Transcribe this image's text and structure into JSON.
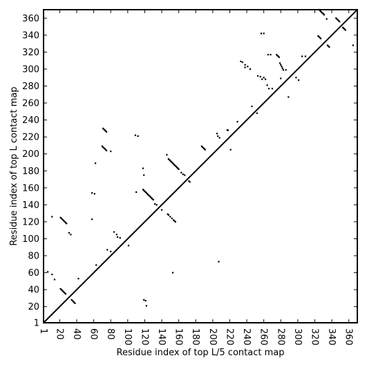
{
  "chart_data": {
    "type": "scatter",
    "title": "",
    "xlabel": "Residue index of top L/5 contact map",
    "ylabel": "Residue index of top L contact map",
    "xlim": [
      1,
      370
    ],
    "ylim": [
      1,
      370
    ],
    "grid": false,
    "x_ticks": [
      1,
      20,
      40,
      60,
      80,
      100,
      120,
      140,
      160,
      180,
      200,
      220,
      240,
      260,
      280,
      300,
      320,
      340,
      360
    ],
    "y_ticks": [
      1,
      20,
      40,
      60,
      80,
      100,
      120,
      140,
      160,
      180,
      200,
      220,
      240,
      260,
      280,
      300,
      320,
      340,
      360
    ],
    "diagonal": {
      "from": [
        1,
        1
      ],
      "to": [
        370,
        370
      ]
    },
    "series": [
      {
        "marker_color": "#000000",
        "points": [
          [
            21,
            125
          ],
          [
            22,
            124
          ],
          [
            23,
            123
          ],
          [
            24,
            122
          ],
          [
            25,
            121
          ],
          [
            26,
            120
          ],
          [
            27,
            119
          ],
          [
            28,
            118
          ],
          [
            21,
            41
          ],
          [
            22,
            40
          ],
          [
            23,
            39
          ],
          [
            24,
            38
          ],
          [
            25,
            37
          ],
          [
            26,
            36
          ],
          [
            27,
            35
          ],
          [
            34,
            28
          ],
          [
            35,
            27
          ],
          [
            36,
            26
          ],
          [
            37,
            25
          ],
          [
            38,
            24
          ],
          [
            31,
            107
          ],
          [
            33,
            105
          ],
          [
            11,
            126
          ],
          [
            11,
            58
          ],
          [
            14,
            52
          ],
          [
            6,
            61
          ],
          [
            42,
            53
          ],
          [
            58,
            154
          ],
          [
            61,
            153
          ],
          [
            58,
            123
          ],
          [
            62,
            189
          ],
          [
            63,
            69
          ],
          [
            70,
            209
          ],
          [
            71,
            208
          ],
          [
            72,
            207
          ],
          [
            73,
            206
          ],
          [
            74,
            205
          ],
          [
            75,
            204
          ],
          [
            71,
            230
          ],
          [
            72,
            229
          ],
          [
            73,
            228
          ],
          [
            74,
            227
          ],
          [
            75,
            226
          ],
          [
            80,
            203
          ],
          [
            76,
            87
          ],
          [
            80,
            85
          ],
          [
            84,
            108
          ],
          [
            87,
            105
          ],
          [
            88,
            102
          ],
          [
            91,
            101
          ],
          [
            101,
            92
          ],
          [
            109,
            222
          ],
          [
            112,
            221
          ],
          [
            110,
            155
          ],
          [
            118,
            183
          ],
          [
            119,
            175
          ],
          [
            118,
            158
          ],
          [
            119,
            157
          ],
          [
            120,
            156
          ],
          [
            121,
            155
          ],
          [
            122,
            154
          ],
          [
            123,
            153
          ],
          [
            124,
            152
          ],
          [
            125,
            151
          ],
          [
            126,
            150
          ],
          [
            127,
            149
          ],
          [
            128,
            148
          ],
          [
            129,
            147
          ],
          [
            130,
            146
          ],
          [
            132,
            141
          ],
          [
            134,
            140
          ],
          [
            119,
            28
          ],
          [
            121,
            27
          ],
          [
            122,
            21
          ],
          [
            146,
            199
          ],
          [
            148,
            194
          ],
          [
            149,
            193
          ],
          [
            150,
            192
          ],
          [
            151,
            191
          ],
          [
            152,
            190
          ],
          [
            153,
            189
          ],
          [
            154,
            188
          ],
          [
            155,
            187
          ],
          [
            156,
            186
          ],
          [
            157,
            185
          ],
          [
            158,
            184
          ],
          [
            159,
            183
          ],
          [
            160,
            182
          ],
          [
            147,
            129
          ],
          [
            148,
            128
          ],
          [
            150,
            126
          ],
          [
            152,
            124
          ],
          [
            154,
            122
          ],
          [
            155,
            121
          ],
          [
            156,
            120
          ],
          [
            153,
            60
          ],
          [
            140,
            134
          ],
          [
            163,
            178
          ],
          [
            165,
            176
          ],
          [
            167,
            175
          ],
          [
            172,
            168
          ],
          [
            173,
            167
          ],
          [
            187,
            209
          ],
          [
            188,
            208
          ],
          [
            189,
            207
          ],
          [
            190,
            206
          ],
          [
            191,
            205
          ],
          [
            205,
            224
          ],
          [
            206,
            221
          ],
          [
            208,
            219
          ],
          [
            207,
            73
          ],
          [
            217,
            228
          ],
          [
            218,
            228
          ],
          [
            221,
            205
          ],
          [
            229,
            238
          ],
          [
            233,
            309
          ],
          [
            235,
            308
          ],
          [
            238,
            305
          ],
          [
            238,
            302
          ],
          [
            241,
            303
          ],
          [
            244,
            300
          ],
          [
            246,
            256
          ],
          [
            252,
            248
          ],
          [
            253,
            292
          ],
          [
            256,
            291
          ],
          [
            258,
            288
          ],
          [
            260,
            290
          ],
          [
            262,
            288
          ],
          [
            257,
            342
          ],
          [
            260,
            342
          ],
          [
            265,
            317
          ],
          [
            268,
            317
          ],
          [
            264,
            281
          ],
          [
            266,
            277
          ],
          [
            270,
            277
          ],
          [
            275,
            317
          ],
          [
            276,
            316
          ],
          [
            277,
            315
          ],
          [
            278,
            314
          ],
          [
            279,
            307
          ],
          [
            280,
            305
          ],
          [
            281,
            303
          ],
          [
            282,
            301
          ],
          [
            283,
            299
          ],
          [
            286,
            299
          ],
          [
            289,
            267
          ],
          [
            280,
            289
          ],
          [
            298,
            290
          ],
          [
            301,
            287
          ],
          [
            305,
            315
          ],
          [
            309,
            315
          ],
          [
            324,
            339
          ],
          [
            325,
            338
          ],
          [
            326,
            337
          ],
          [
            327,
            336
          ],
          [
            325,
            370
          ],
          [
            326,
            369
          ],
          [
            327,
            368
          ],
          [
            328,
            367
          ],
          [
            329,
            366
          ],
          [
            330,
            365
          ],
          [
            331,
            364
          ],
          [
            334,
            359
          ],
          [
            335,
            328
          ],
          [
            336,
            327
          ],
          [
            337,
            326
          ],
          [
            345,
            360
          ],
          [
            346,
            359
          ],
          [
            347,
            358
          ],
          [
            348,
            357
          ],
          [
            349,
            356
          ],
          [
            353,
            349
          ],
          [
            354,
            348
          ],
          [
            355,
            347
          ],
          [
            356,
            346
          ],
          [
            365,
            328
          ]
        ]
      }
    ]
  }
}
